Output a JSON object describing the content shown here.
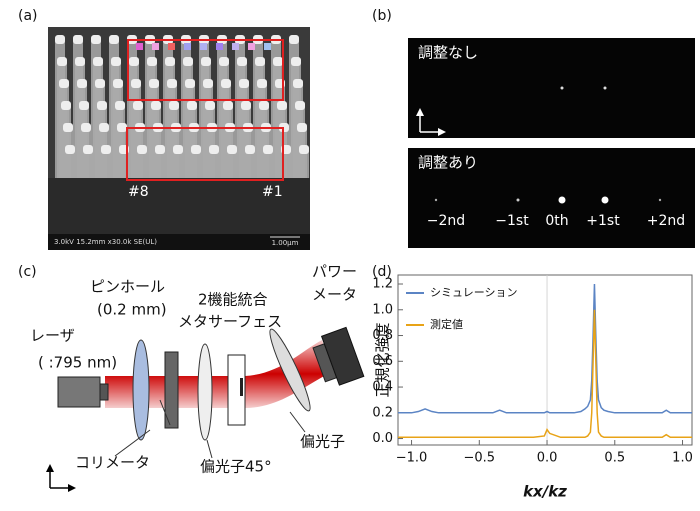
{
  "panel_a": {
    "label": "(a)",
    "markers": [
      "#8",
      "#1"
    ],
    "footer": "3.0kV 15.2mm x30.0k SE(UL)",
    "scale": "1.00μm"
  },
  "panel_b": {
    "label": "(b)",
    "top_title": "調整なし",
    "bottom_title": "調整あり",
    "orders": [
      "−2nd",
      "−1st",
      "0th",
      "+1st",
      "+2nd"
    ]
  },
  "panel_c": {
    "label": "(c)",
    "pinhole": "ピンホール",
    "pinhole_size": "(0.2 mm)",
    "metasurface_1": "2機能統合",
    "metasurface_2": "メタサーフェス",
    "meter_1": "パワー",
    "meter_2": "メータ",
    "laser": "レーザ",
    "wavelength": "( :795 nm)",
    "collimator": "コリメータ",
    "polarizer45": "偏光子45°",
    "polarizer": "偏光子"
  },
  "panel_d": {
    "label": "(d)"
  },
  "chart_data": {
    "type": "line",
    "xlabel": "kx/kz",
    "ylabel": "正規化強度",
    "x": [
      -1.1,
      -1.0,
      -0.95,
      -0.9,
      -0.85,
      -0.8,
      -0.6,
      -0.4,
      -0.35,
      -0.3,
      -0.1,
      -0.02,
      0,
      0.02,
      0.1,
      0.2,
      0.25,
      0.28,
      0.3,
      0.32,
      0.33,
      0.34,
      0.35,
      0.36,
      0.37,
      0.38,
      0.4,
      0.42,
      0.45,
      0.5,
      0.6,
      0.8,
      0.85,
      0.88,
      0.91,
      1.0,
      1.07
    ],
    "series": [
      {
        "name": "シミュレーション",
        "color": "#5b84c4",
        "values": [
          0.2,
          0.2,
          0.21,
          0.23,
          0.21,
          0.2,
          0.2,
          0.2,
          0.22,
          0.2,
          0.2,
          0.2,
          0.21,
          0.2,
          0.2,
          0.2,
          0.21,
          0.23,
          0.25,
          0.3,
          0.45,
          0.8,
          1.2,
          0.8,
          0.45,
          0.3,
          0.24,
          0.22,
          0.21,
          0.2,
          0.2,
          0.2,
          0.2,
          0.22,
          0.2,
          0.2,
          0.2
        ]
      },
      {
        "name": "測定値",
        "color": "#e8a317",
        "values": [
          0.01,
          0.01,
          0.01,
          0.01,
          0.01,
          0.01,
          0.01,
          0.01,
          0.01,
          0.01,
          0.01,
          0.02,
          0.07,
          0.04,
          0.01,
          0.01,
          0.01,
          0.01,
          0.02,
          0.05,
          0.2,
          0.6,
          1.0,
          0.6,
          0.2,
          0.05,
          0.02,
          0.01,
          0.01,
          0.01,
          0.01,
          0.01,
          0.01,
          0.03,
          0.01,
          0.01,
          0.01
        ]
      }
    ],
    "xlim": [
      -1.1,
      1.07
    ],
    "ylim": [
      -0.05,
      1.27
    ],
    "xticks": [
      {
        "value": -1.0,
        "label": "−1.0"
      },
      {
        "value": -0.5,
        "label": "−0.5"
      },
      {
        "value": 0,
        "label": "0.0"
      },
      0.5,
      {
        "value": 1.0,
        "label": "1.0"
      }
    ],
    "yticks": [
      {
        "value": 0,
        "label": "0.0"
      },
      0.2,
      0.4,
      0.6,
      0.8,
      {
        "value": 1.0,
        "label": "1.0"
      },
      1.2
    ],
    "legend": "upper left"
  }
}
